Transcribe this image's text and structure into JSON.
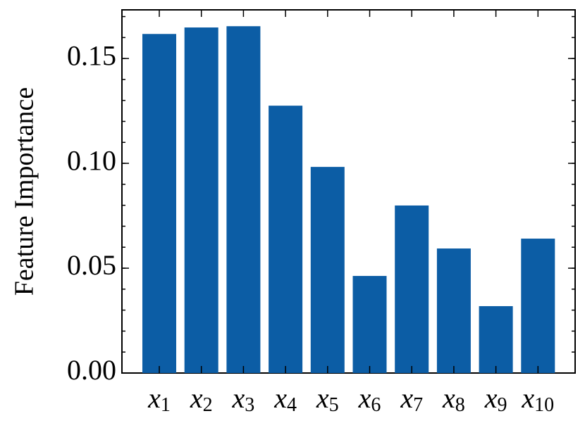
{
  "chart_data": {
    "type": "bar",
    "ylabel": "Feature Importance",
    "categories": [
      "x1",
      "x2",
      "x3",
      "x4",
      "x5",
      "x6",
      "x7",
      "x8",
      "x9",
      "x10"
    ],
    "values": [
      0.1617,
      0.1648,
      0.1654,
      0.1275,
      0.0983,
      0.0463,
      0.0799,
      0.0594,
      0.0319,
      0.0641
    ],
    "color": "#0C5DA5",
    "ylim": [
      0,
      0.1732
    ],
    "yticks": [
      {
        "value": 0,
        "label": "0.00"
      },
      {
        "value": 0.05,
        "label": "0.05"
      },
      {
        "value": 0.1,
        "label": "0.10"
      },
      {
        "value": 0.15,
        "label": "0.15"
      }
    ]
  }
}
